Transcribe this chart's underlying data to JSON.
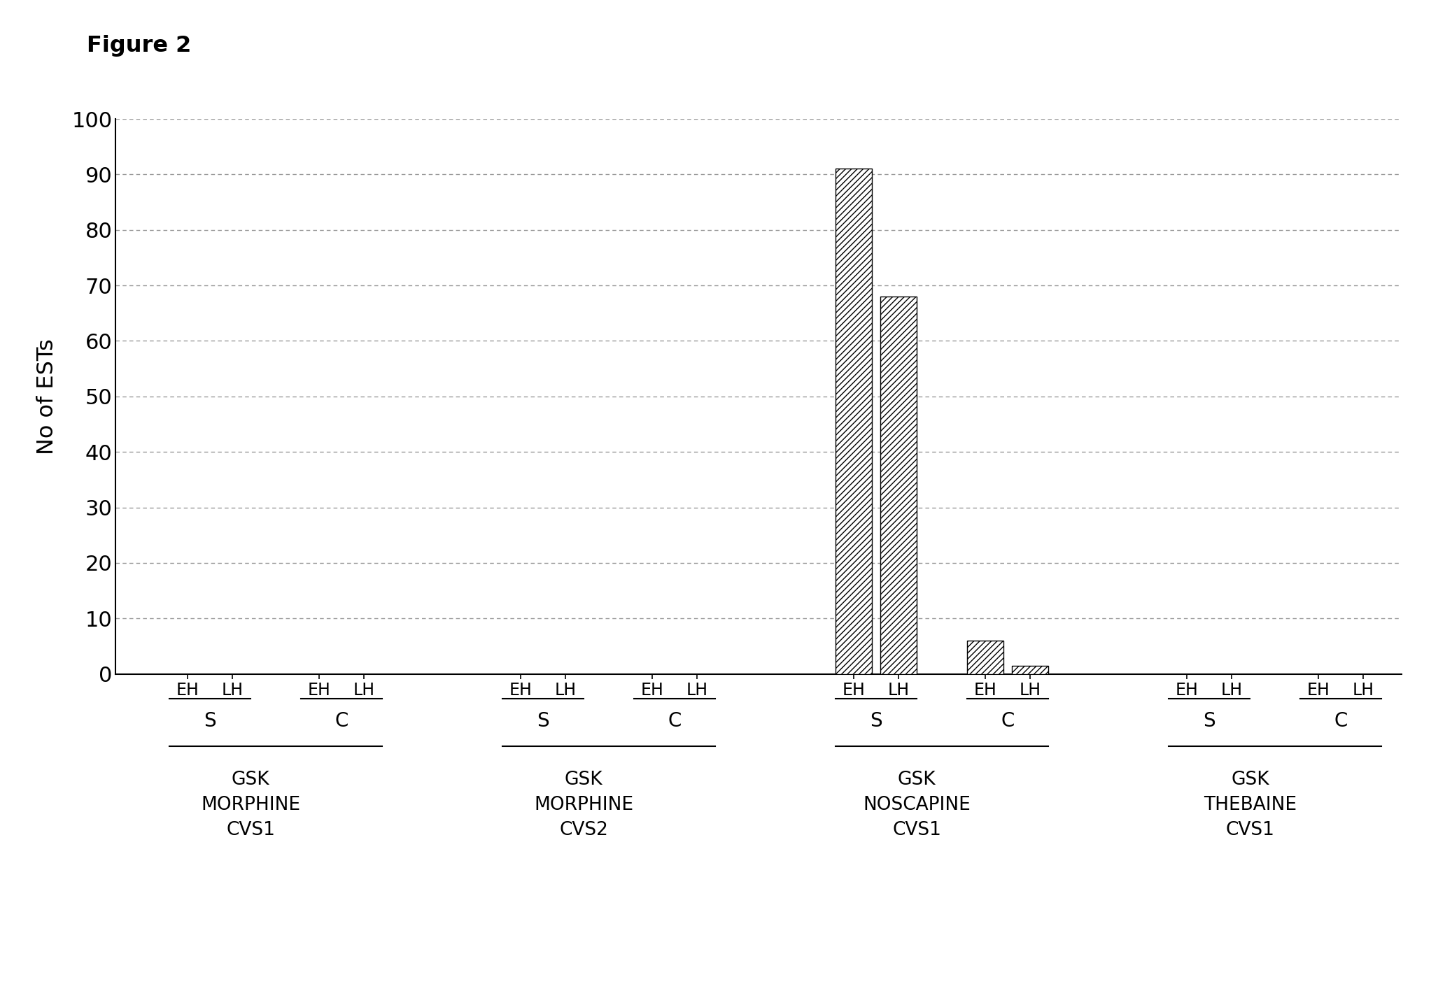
{
  "title": "Figure 2",
  "ylabel": "No of ESTs",
  "ylim": [
    0,
    100
  ],
  "yticks": [
    0,
    10,
    20,
    30,
    40,
    50,
    60,
    70,
    80,
    90,
    100
  ],
  "bar_groups": [
    {
      "sc_label": "S",
      "drug": "GSK\nMORPHINE\nCVS1",
      "bars": [
        {
          "tick": "EH",
          "value": 0
        },
        {
          "tick": "LH",
          "value": 0
        }
      ]
    },
    {
      "sc_label": "C",
      "drug": "GSK\nMORPHINE\nCVS1",
      "bars": [
        {
          "tick": "EH",
          "value": 0
        },
        {
          "tick": "LH",
          "value": 0
        }
      ]
    },
    {
      "sc_label": "S",
      "drug": "GSK\nMORPHINE\nCVS2",
      "bars": [
        {
          "tick": "EH",
          "value": 0
        },
        {
          "tick": "LH",
          "value": 0
        }
      ]
    },
    {
      "sc_label": "C",
      "drug": "GSK\nMORPHINE\nCVS2",
      "bars": [
        {
          "tick": "EH",
          "value": 0
        },
        {
          "tick": "LH",
          "value": 0
        }
      ]
    },
    {
      "sc_label": "S",
      "drug": "GSK\nNOSCAPINE\nCVS1",
      "bars": [
        {
          "tick": "EH",
          "value": 91
        },
        {
          "tick": "LH",
          "value": 68
        }
      ]
    },
    {
      "sc_label": "C",
      "drug": "GSK\nNOSCAPINE\nCVS1",
      "bars": [
        {
          "tick": "EH",
          "value": 6
        },
        {
          "tick": "LH",
          "value": 1.5
        }
      ]
    },
    {
      "sc_label": "S",
      "drug": "GSK\nTHEBAINE\nCVS1",
      "bars": [
        {
          "tick": "EH",
          "value": 0
        },
        {
          "tick": "LH",
          "value": 0
        }
      ]
    },
    {
      "sc_label": "C",
      "drug": "GSK\nTHEBAINE\nCVS1",
      "bars": [
        {
          "tick": "EH",
          "value": 0
        },
        {
          "tick": "LH",
          "value": 0
        }
      ]
    }
  ],
  "drug_labels": [
    "GSK\nMORPHINE\nCVS1",
    "GSK\nMORPHINE\nCVS2",
    "GSK\nNOSCAPINE\nCVS1",
    "GSK\nTHEBAINE\nCVS1"
  ],
  "hatch_pattern": "////",
  "bar_color": "white",
  "bar_edgecolor": "black",
  "background_color": "white",
  "grid_color": "#999999",
  "figure_label": "Figure 2",
  "bar_width": 0.55
}
